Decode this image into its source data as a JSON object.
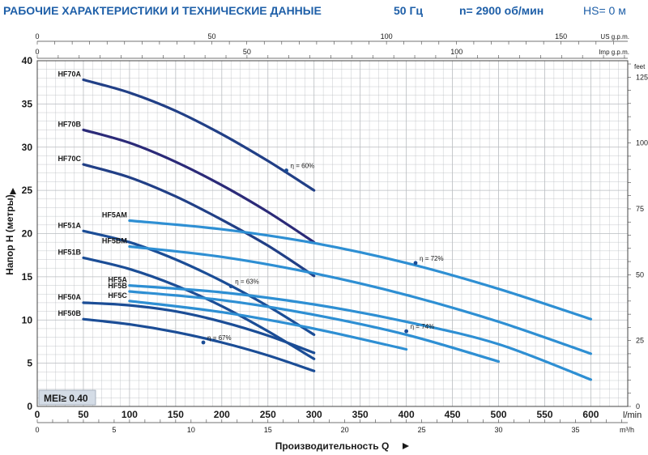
{
  "header": {
    "title": "РАБОЧИЕ ХАРАКТЕРИСТИКИ И ТЕХНИЧЕСКИЕ ДАННЫЕ",
    "frequency": "50 Гц",
    "speed": "n= 2900 об/мин",
    "hs": "HS= 0 м"
  },
  "badge": "MEI≥ 0.40",
  "colors": {
    "dark_navy": "#213f86",
    "purple_navy": "#2b2a78",
    "mid_blue": "#1b4d96",
    "light_blue": "#2e8fd3",
    "grid": "#b9bcc0",
    "text": "#1a1a1a",
    "header": "#1e5fa8"
  },
  "chart_data": {
    "type": "line",
    "title": "",
    "xlabel": "Производительность Q",
    "ylabel": "Напор H (метры)",
    "xlim": [
      0,
      640
    ],
    "ylim": [
      0,
      40
    ],
    "grid": true,
    "x_unit": "l/min",
    "x_ticks": [
      "0",
      "50",
      "100",
      "150",
      "200",
      "250",
      "300",
      "350",
      "400",
      "450",
      "500",
      "550",
      "600"
    ],
    "y_ticks": [
      "0",
      "5",
      "10",
      "15",
      "20",
      "25",
      "30",
      "35",
      "40"
    ],
    "secondary_axes": {
      "m3h": {
        "unit": "m³/h",
        "ticks": [
          "0",
          "5",
          "10",
          "15",
          "20",
          "25",
          "30",
          "35"
        ],
        "factor_lmin": 16.667
      },
      "us_gpm": {
        "unit": "US g.p.m.",
        "ticks": [
          "0",
          "50",
          "100",
          "150"
        ],
        "factor_lmin": 3.785
      },
      "imp_gpm": {
        "unit": "Imp g.p.m.",
        "ticks": [
          "0",
          "50",
          "100",
          "150"
        ],
        "factor_lmin": 4.546
      },
      "feet": {
        "unit": "feet",
        "ticks": [
          "0",
          "25",
          "50",
          "75",
          "100",
          "125"
        ],
        "factor_m": 0.3048
      }
    },
    "series": [
      {
        "name": "HF70A",
        "color": "dark_navy",
        "x": [
          50,
          100,
          150,
          200,
          250,
          300
        ],
        "y": [
          37.8,
          36.3,
          34.2,
          31.5,
          28.4,
          25
        ]
      },
      {
        "name": "HF70B",
        "color": "purple_navy",
        "x": [
          50,
          100,
          150,
          200,
          250,
          300
        ],
        "y": [
          32,
          30.5,
          28.3,
          25.6,
          22.5,
          19
        ]
      },
      {
        "name": "HF70C",
        "color": "dark_navy",
        "x": [
          50,
          100,
          150,
          200,
          250,
          300
        ],
        "y": [
          28,
          26.5,
          24.3,
          21.6,
          18.6,
          15.1
        ]
      },
      {
        "name": "HF51A",
        "color": "mid_blue",
        "x": [
          50,
          100,
          150,
          200,
          250,
          300
        ],
        "y": [
          20.3,
          19,
          17,
          14.5,
          11.6,
          8.3
        ]
      },
      {
        "name": "HF51B",
        "color": "mid_blue",
        "x": [
          50,
          100,
          150,
          200,
          250,
          300
        ],
        "y": [
          17.2,
          15.9,
          14,
          11.6,
          8.7,
          5.5
        ]
      },
      {
        "name": "HF50A",
        "color": "mid_blue",
        "x": [
          50,
          100,
          150,
          200,
          250,
          300
        ],
        "y": [
          12,
          11.7,
          11,
          9.8,
          8.2,
          6.2
        ]
      },
      {
        "name": "HF50B",
        "color": "mid_blue",
        "x": [
          50,
          100,
          150,
          200,
          250,
          300
        ],
        "y": [
          10.1,
          9.5,
          8.6,
          7.4,
          5.9,
          4.1
        ]
      },
      {
        "name": "HF5AM",
        "color": "light_blue",
        "x": [
          100,
          200,
          300,
          400,
          500,
          600
        ],
        "y": [
          21.5,
          20.5,
          18.9,
          16.6,
          13.6,
          10.1
        ]
      },
      {
        "name": "HF5BM",
        "color": "light_blue",
        "x": [
          100,
          200,
          300,
          400,
          500,
          600
        ],
        "y": [
          18.5,
          17.3,
          15.4,
          12.9,
          9.8,
          6.1
        ]
      },
      {
        "name": "HF5A",
        "color": "light_blue",
        "x": [
          100,
          200,
          300,
          400,
          500,
          600
        ],
        "y": [
          14,
          13.2,
          11.8,
          9.8,
          7.2,
          3.1
        ]
      },
      {
        "name": "HF5B",
        "color": "light_blue",
        "x": [
          100,
          200,
          300,
          400,
          500
        ],
        "y": [
          13.3,
          12.3,
          10.6,
          8.3,
          5.2
        ]
      },
      {
        "name": "HF5C",
        "color": "light_blue",
        "x": [
          100,
          200,
          300,
          400
        ],
        "y": [
          12.2,
          10.9,
          9,
          6.6
        ]
      }
    ],
    "annotations": [
      {
        "text": "η = 60%",
        "x": 270,
        "y": 27.3
      },
      {
        "text": "η = 72%",
        "x": 410,
        "y": 16.6
      },
      {
        "text": "η = 63%",
        "x": 210,
        "y": 13.9
      },
      {
        "text": "η = 74%",
        "x": 400,
        "y": 8.7
      },
      {
        "text": "η = 67%",
        "x": 180,
        "y": 7.4
      }
    ]
  }
}
